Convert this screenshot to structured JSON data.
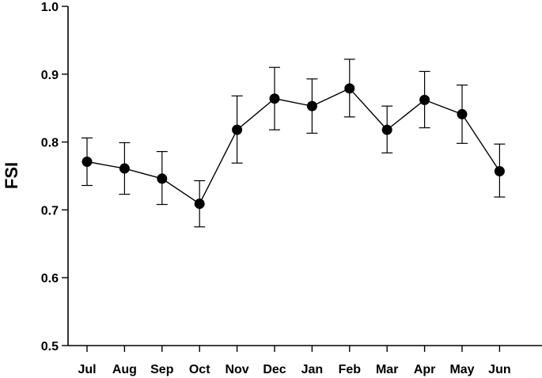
{
  "chart_data": {
    "type": "line",
    "title": "",
    "xlabel": "",
    "ylabel": "FSI",
    "categories": [
      "Jul",
      "Aug",
      "Sep",
      "Oct",
      "Nov",
      "Dec",
      "Jan",
      "Feb",
      "Mar",
      "Apr",
      "May",
      "Jun"
    ],
    "ylim": [
      0.5,
      1.0
    ],
    "yticks": [
      "0.5",
      "0.6",
      "0.7",
      "0.8",
      "0.9",
      "1.0"
    ],
    "grid": false,
    "series": [
      {
        "values": [
          0.771,
          0.761,
          0.746,
          0.709,
          0.818,
          0.864,
          0.853,
          0.879,
          0.818,
          0.862,
          0.841,
          0.757
        ],
        "err_low": [
          0.736,
          0.723,
          0.708,
          0.675,
          0.769,
          0.818,
          0.813,
          0.837,
          0.784,
          0.821,
          0.798,
          0.719
        ],
        "err_high": [
          0.806,
          0.799,
          0.786,
          0.743,
          0.868,
          0.91,
          0.893,
          0.922,
          0.853,
          0.904,
          0.884,
          0.797
        ]
      }
    ]
  }
}
